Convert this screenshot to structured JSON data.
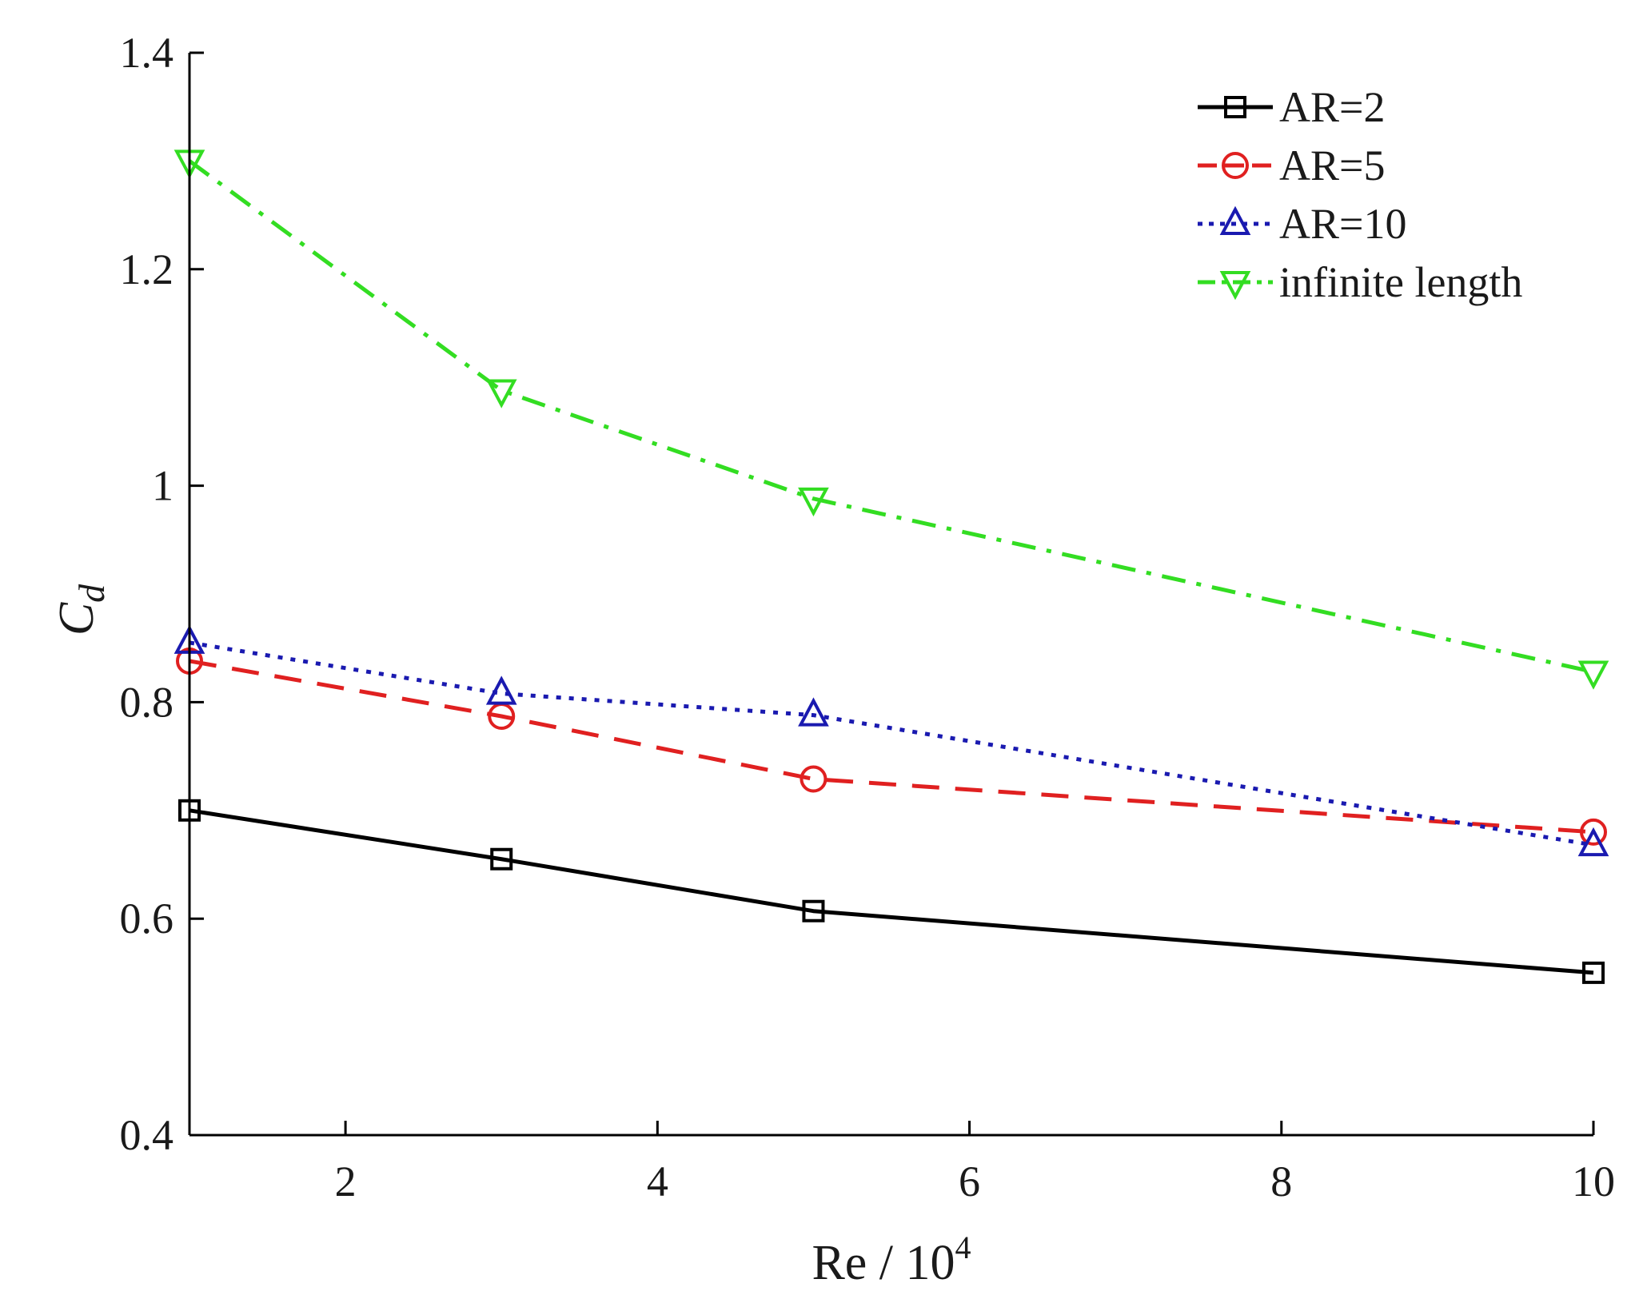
{
  "chart_data": {
    "type": "line",
    "xlabel": {
      "main": "Re / 10",
      "sup": "4"
    },
    "ylabel": {
      "main": "C",
      "sub": "d"
    },
    "xlim": [
      1,
      10
    ],
    "ylim": [
      0.4,
      1.4
    ],
    "xticks": [
      2,
      4,
      6,
      8,
      10
    ],
    "xtick_labels": [
      "2",
      "4",
      "6",
      "8",
      "10"
    ],
    "yticks": [
      0.4,
      0.6,
      0.8,
      1.0,
      1.2,
      1.4
    ],
    "ytick_labels": [
      "0.4",
      "0.6",
      "0.8",
      "1",
      "1.2",
      "1.4"
    ],
    "grid": false,
    "legend_position": "top-right",
    "series": [
      {
        "name": "AR=2",
        "color": "#000000",
        "marker": "square",
        "dash": "solid",
        "x": [
          1,
          3,
          5,
          10
        ],
        "y": [
          0.7,
          0.655,
          0.607,
          0.55
        ]
      },
      {
        "name": "AR=5",
        "color": "#e02020",
        "marker": "circle",
        "dash": "dashed",
        "x": [
          1,
          3,
          5,
          10
        ],
        "y": [
          0.838,
          0.787,
          0.729,
          0.68
        ]
      },
      {
        "name": "AR=10",
        "color": "#1a1ab0",
        "marker": "triangle-up",
        "dash": "dotted",
        "x": [
          1,
          3,
          5,
          10
        ],
        "y": [
          0.855,
          0.808,
          0.788,
          0.668
        ]
      },
      {
        "name": "infinite length",
        "color": "#33dd22",
        "marker": "triangle-down",
        "dash": "dashdot",
        "x": [
          1,
          3,
          5,
          10
        ],
        "y": [
          1.3,
          1.088,
          0.988,
          0.828
        ]
      }
    ]
  }
}
